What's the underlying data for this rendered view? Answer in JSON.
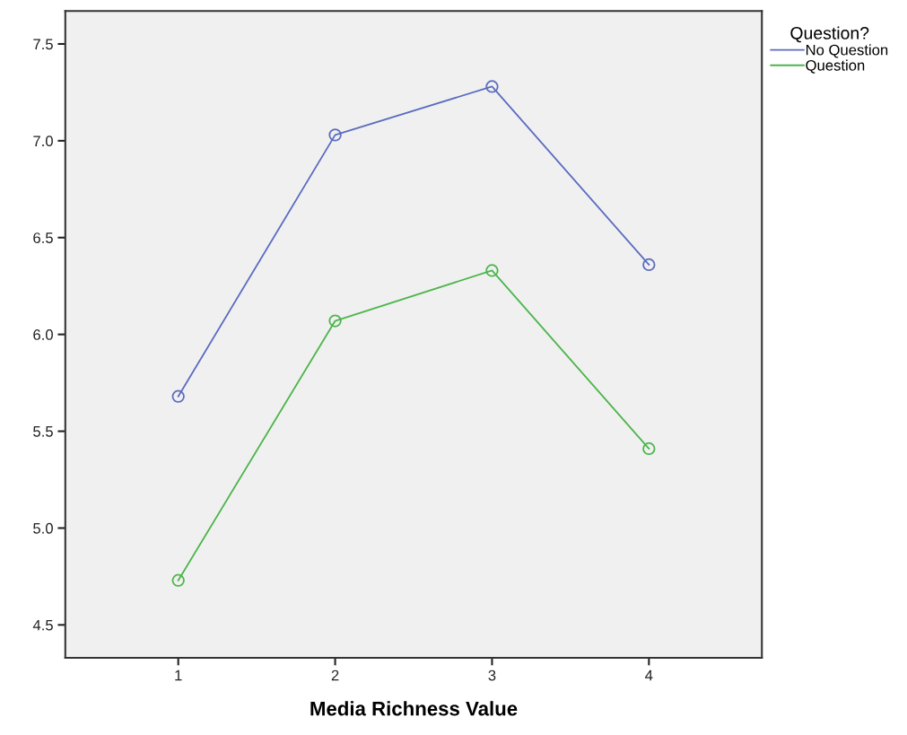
{
  "chart_data": {
    "type": "line",
    "xlabel": "Media Richness Value",
    "legend_title": "Question?",
    "x": [
      1,
      2,
      3,
      4
    ],
    "series": [
      {
        "name": "No Question",
        "color": "#5b6cc0",
        "values": [
          5.68,
          7.03,
          7.28,
          6.36
        ]
      },
      {
        "name": "Question",
        "color": "#4cb54c",
        "values": [
          4.73,
          6.07,
          6.33,
          5.41
        ]
      }
    ],
    "xlim": [
      0.28,
      4.72
    ],
    "xticks": [
      1,
      2,
      3,
      4
    ],
    "ylim": [
      4.33,
      7.67
    ],
    "yticks": [
      {
        "value": 4.5,
        "label": "4.5"
      },
      {
        "value": 5.0,
        "label": "5.0"
      },
      {
        "value": 5.5,
        "label": "5.5"
      },
      {
        "value": 6.0,
        "label": "6.0"
      },
      {
        "value": 6.5,
        "label": "6.5"
      },
      {
        "value": 7.0,
        "label": "7.0"
      },
      {
        "value": 7.5,
        "label": "7.5"
      }
    ],
    "grid": false,
    "legend": "top right",
    "marker": "circle",
    "line_style": "solid"
  }
}
